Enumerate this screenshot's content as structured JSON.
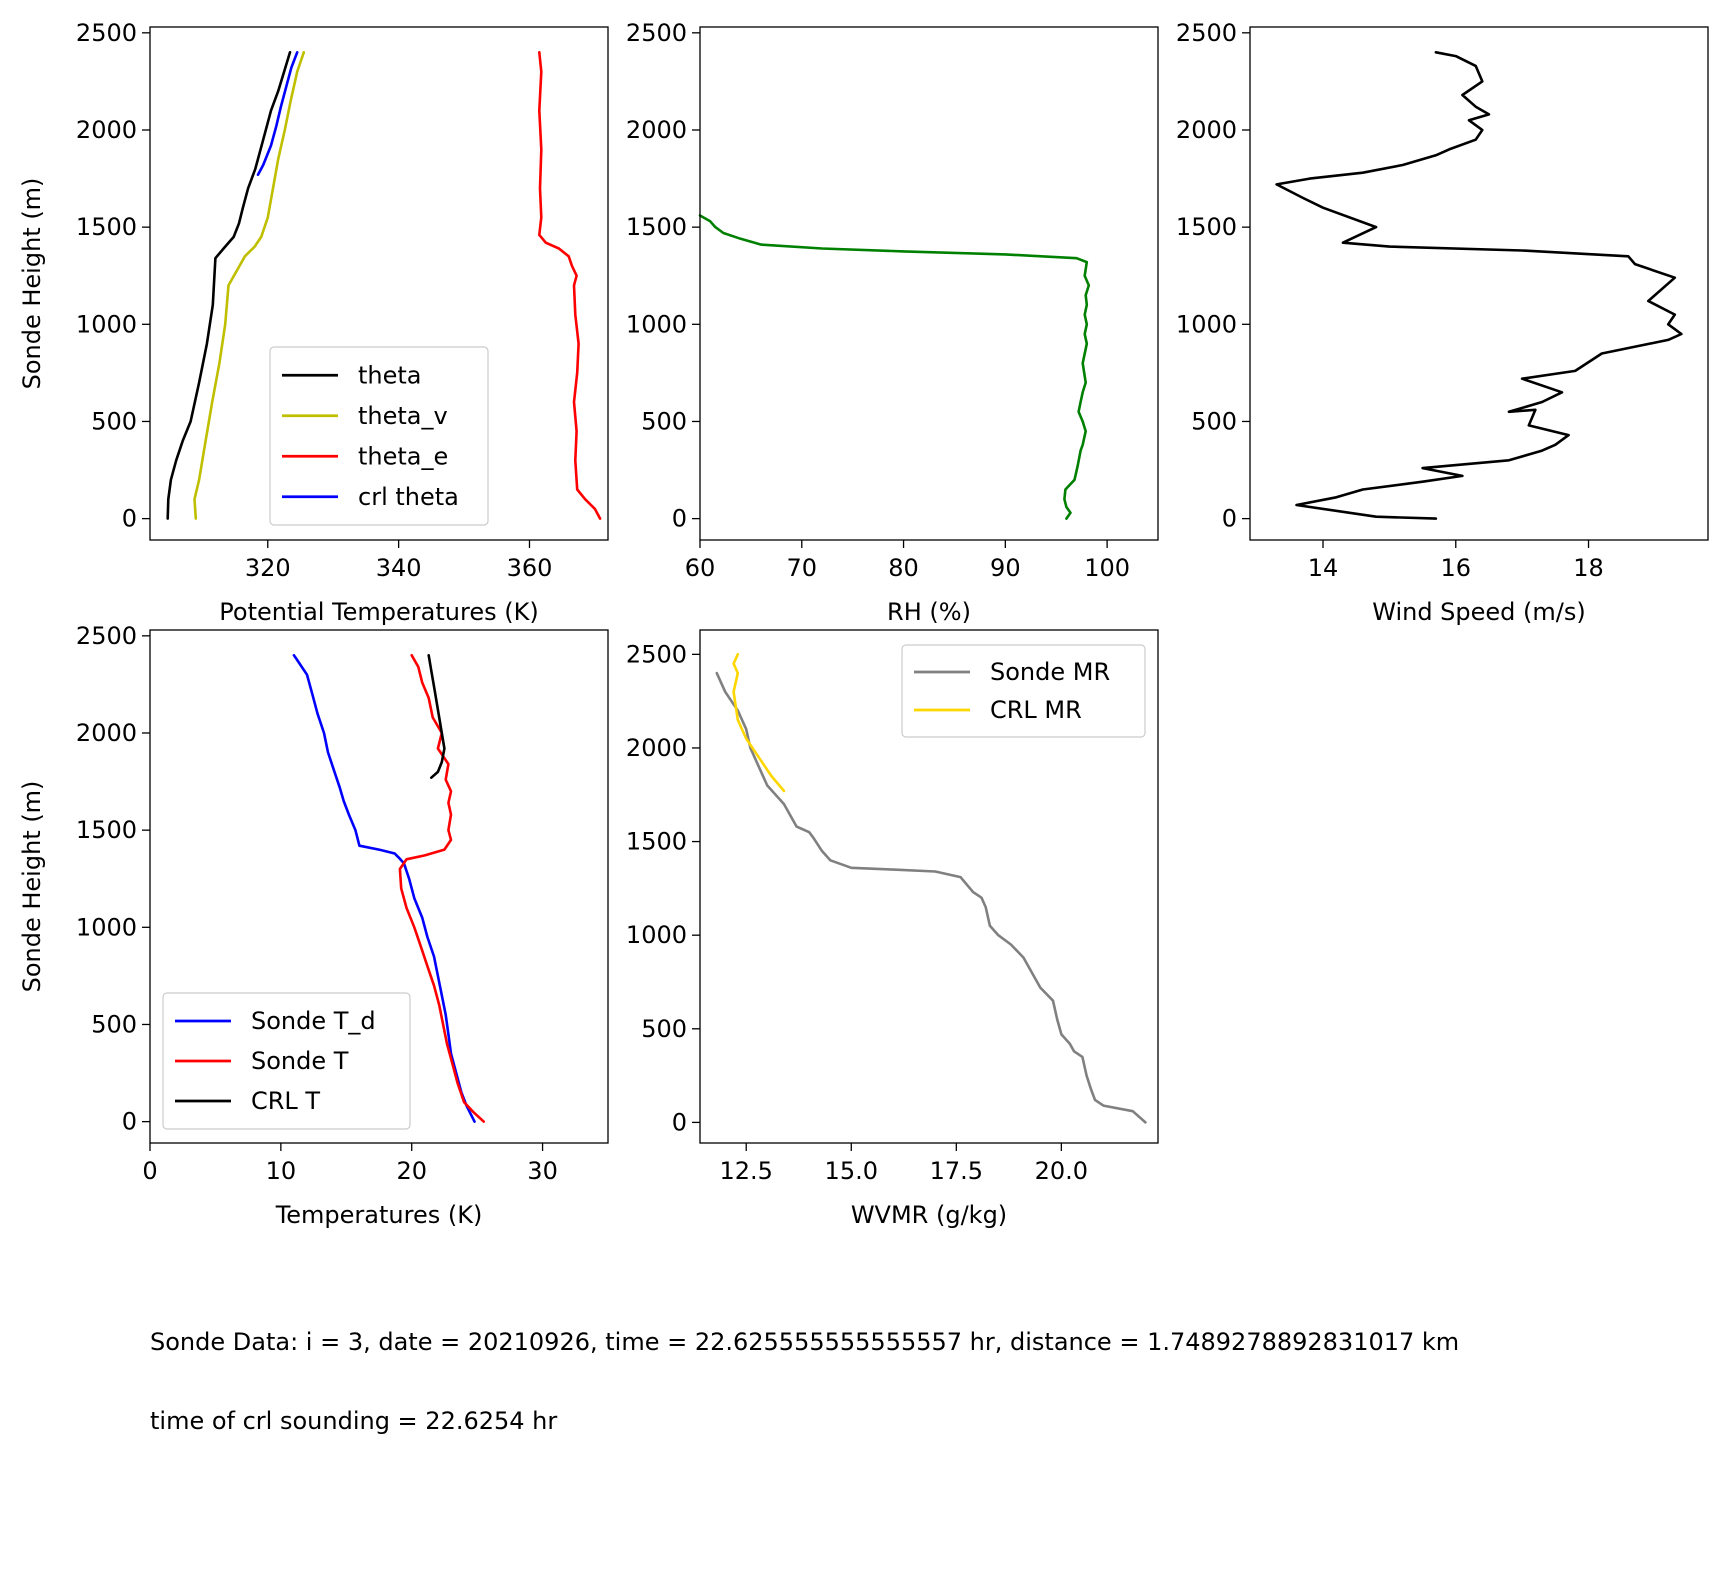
{
  "chart_data": [
    {
      "type": "line",
      "xlabel": "Potential Temperatures (K)",
      "ylabel": "Sonde Height (m)",
      "xlim": [
        302,
        372
      ],
      "ylim": [
        -110,
        2530
      ],
      "xticks": [
        320,
        340,
        360
      ],
      "yticks": [
        0,
        500,
        1000,
        1500,
        2000,
        2500
      ],
      "legend": "lower-center",
      "series": [
        {
          "name": "theta",
          "color": "#000000",
          "x": [
            304.7,
            304.8,
            305.2,
            306.0,
            307.0,
            308.2,
            309.5,
            310.7,
            311.6,
            312.0,
            313.5,
            314.8,
            315.6,
            316.2,
            317.0,
            318.1,
            319.3,
            320.5,
            321.6,
            322.5,
            323.4
          ],
          "y": [
            0,
            100,
            200,
            300,
            400,
            500,
            700,
            900,
            1100,
            1340,
            1400,
            1450,
            1520,
            1600,
            1700,
            1800,
            1950,
            2100,
            2200,
            2300,
            2400
          ]
        },
        {
          "name": "theta_v",
          "color": "#bfbf00",
          "x": [
            309.0,
            308.8,
            309.5,
            310.5,
            311.5,
            312.6,
            313.5,
            314.0,
            316.5,
            318.0,
            319.0,
            320.0,
            320.8,
            321.6,
            322.6,
            323.5,
            324.5,
            325.5
          ],
          "y": [
            0,
            100,
            200,
            400,
            600,
            800,
            1000,
            1200,
            1350,
            1400,
            1450,
            1550,
            1700,
            1850,
            2000,
            2150,
            2300,
            2400
          ]
        },
        {
          "name": "theta_e",
          "color": "#ff0000",
          "x": [
            370.8,
            370.0,
            368.5,
            367.3,
            367.0,
            367.2,
            366.8,
            367.3,
            367.5,
            367.0,
            366.8,
            367.2,
            366.5,
            366.0,
            364.5,
            362.5,
            361.5,
            361.8,
            361.6,
            361.8,
            361.5,
            361.8,
            361.5
          ],
          "y": [
            0,
            50,
            100,
            150,
            300,
            450,
            600,
            750,
            900,
            1050,
            1200,
            1250,
            1300,
            1350,
            1390,
            1420,
            1460,
            1550,
            1700,
            1900,
            2100,
            2300,
            2400
          ]
        },
        {
          "name": "crl theta",
          "color": "#0000ff",
          "x": [
            318.5,
            319.3,
            320.5,
            321.3,
            322.0,
            322.8,
            323.6,
            324.5
          ],
          "y": [
            1770,
            1820,
            1920,
            2020,
            2120,
            2220,
            2320,
            2400
          ]
        }
      ]
    },
    {
      "type": "line",
      "xlabel": "RH (%)",
      "ylabel": "",
      "xlim": [
        60,
        105
      ],
      "ylim": [
        -110,
        2530
      ],
      "xticks": [
        60,
        70,
        80,
        90,
        100
      ],
      "yticks": [
        0,
        500,
        1000,
        1500,
        2000,
        2500
      ],
      "series": [
        {
          "name": "",
          "color": "#008000",
          "x": [
            96.0,
            96.4,
            96.0,
            95.8,
            95.9,
            96.8,
            97.1,
            97.4,
            97.6,
            97.9,
            97.6,
            97.2,
            97.4,
            97.6,
            97.9,
            97.6,
            98.0,
            97.8,
            98.0,
            97.8,
            98.0,
            97.9,
            98.2,
            97.8,
            98.0,
            97.0,
            90.0,
            80.0,
            72.0,
            66.0,
            64.0,
            62.3,
            61.5,
            61.0,
            60.0
          ],
          "y": [
            0,
            30,
            60,
            100,
            150,
            200,
            270,
            350,
            380,
            450,
            500,
            550,
            600,
            650,
            700,
            800,
            900,
            950,
            1000,
            1050,
            1100,
            1150,
            1200,
            1250,
            1320,
            1340,
            1360,
            1375,
            1390,
            1410,
            1440,
            1470,
            1500,
            1530,
            1560
          ]
        }
      ]
    },
    {
      "type": "line",
      "xlabel": "Wind Speed (m/s)",
      "ylabel": "",
      "xlim": [
        12.9,
        19.8
      ],
      "ylim": [
        -110,
        2530
      ],
      "xticks": [
        14,
        16,
        18
      ],
      "yticks": [
        0,
        500,
        1000,
        1500,
        2000,
        2500
      ],
      "series": [
        {
          "name": "",
          "color": "#000000",
          "x": [
            15.7,
            14.8,
            13.6,
            14.2,
            14.6,
            15.5,
            16.1,
            15.5,
            16.8,
            17.3,
            17.5,
            17.7,
            17.1,
            17.2,
            16.8,
            17.3,
            17.6,
            17.0,
            17.8,
            18.2,
            19.2,
            19.4,
            19.2,
            19.3,
            18.9,
            19.3,
            18.7,
            18.6,
            17.0,
            15.0,
            14.3,
            14.8,
            14.0,
            13.7,
            13.3,
            13.8,
            14.6,
            15.2,
            15.7,
            15.9,
            16.3,
            16.4,
            16.2,
            16.5,
            16.3,
            16.1,
            16.4,
            16.3,
            16.0,
            15.7
          ],
          "y": [
            0,
            10,
            70,
            110,
            150,
            190,
            220,
            260,
            300,
            350,
            380,
            430,
            480,
            560,
            550,
            600,
            650,
            720,
            760,
            850,
            920,
            950,
            1000,
            1050,
            1120,
            1240,
            1310,
            1350,
            1380,
            1400,
            1420,
            1500,
            1600,
            1650,
            1720,
            1750,
            1780,
            1820,
            1870,
            1900,
            1950,
            2000,
            2050,
            2080,
            2120,
            2180,
            2250,
            2330,
            2380,
            2400
          ]
        }
      ]
    },
    {
      "type": "line",
      "xlabel": "Temperatures (K)",
      "ylabel": "Sonde Height (m)",
      "xlim": [
        0,
        35
      ],
      "ylim": [
        -110,
        2530
      ],
      "xticks": [
        0,
        10,
        20,
        30
      ],
      "yticks": [
        0,
        500,
        1000,
        1500,
        2000,
        2500
      ],
      "legend": "lower-left",
      "series": [
        {
          "name": "Sonde T_d",
          "color": "#0000ff",
          "x": [
            24.8,
            24.2,
            23.8,
            23.4,
            23.0,
            22.8,
            22.6,
            22.3,
            22.0,
            21.7,
            21.2,
            20.8,
            20.2,
            19.8,
            19.4,
            19.0,
            18.7,
            17.5,
            16.0,
            15.7,
            15.2,
            14.8,
            14.5,
            14.1,
            13.6,
            13.3,
            12.8,
            12.4,
            12.0,
            11.5,
            11.2,
            11.0
          ],
          "y": [
            0,
            80,
            150,
            250,
            350,
            450,
            550,
            650,
            750,
            850,
            950,
            1050,
            1150,
            1250,
            1330,
            1360,
            1380,
            1400,
            1420,
            1500,
            1580,
            1650,
            1720,
            1800,
            1900,
            2000,
            2100,
            2200,
            2300,
            2350,
            2380,
            2400
          ]
        },
        {
          "name": "Sonde T",
          "color": "#ff0000",
          "x": [
            25.5,
            24.7,
            24.0,
            23.5,
            23.1,
            22.7,
            22.4,
            22.1,
            21.7,
            21.2,
            20.7,
            20.2,
            19.6,
            19.2,
            19.1,
            19.6,
            21.0,
            22.5,
            23.0,
            22.8,
            23.0,
            22.8,
            23.0,
            22.6,
            22.8,
            22.0,
            22.3,
            21.6,
            21.3,
            20.8,
            20.5,
            20.0
          ],
          "y": [
            0,
            50,
            100,
            200,
            300,
            400,
            500,
            600,
            700,
            800,
            900,
            1000,
            1100,
            1200,
            1300,
            1350,
            1370,
            1400,
            1450,
            1500,
            1580,
            1640,
            1700,
            1760,
            1840,
            1920,
            2000,
            2080,
            2180,
            2260,
            2340,
            2400
          ]
        },
        {
          "name": "CRL T",
          "color": "#000000",
          "x": [
            21.5,
            22.0,
            22.3,
            22.5,
            22.3,
            22.1,
            21.9,
            21.7,
            21.5,
            21.3
          ],
          "y": [
            1770,
            1800,
            1850,
            1920,
            2000,
            2080,
            2160,
            2240,
            2320,
            2400
          ]
        }
      ]
    },
    {
      "type": "line",
      "xlabel": "WVMR (g/kg)",
      "ylabel": "",
      "xlim": [
        11.4,
        22.3
      ],
      "ylim": [
        -110,
        2630
      ],
      "xticks": [
        12.5,
        15.0,
        17.5,
        20.0
      ],
      "yticks": [
        0,
        500,
        1000,
        1500,
        2000,
        2500
      ],
      "legend": "upper-right",
      "series": [
        {
          "name": "Sonde MR",
          "color": "#808080",
          "x": [
            22.0,
            21.7,
            21.0,
            20.8,
            20.7,
            20.6,
            20.5,
            20.3,
            20.2,
            20.0,
            19.9,
            19.8,
            19.5,
            19.3,
            19.1,
            18.8,
            18.5,
            18.3,
            18.2,
            18.1,
            17.9,
            17.6,
            17.0,
            16.0,
            15.0,
            14.5,
            14.3,
            14.1,
            14.0,
            13.7,
            13.4,
            13.2,
            13.0,
            12.8,
            12.6,
            12.5,
            12.3,
            12.0,
            11.8
          ],
          "y": [
            0,
            60,
            90,
            120,
            180,
            250,
            350,
            380,
            420,
            470,
            550,
            650,
            720,
            800,
            880,
            950,
            1000,
            1050,
            1150,
            1200,
            1230,
            1310,
            1340,
            1350,
            1360,
            1400,
            1450,
            1520,
            1550,
            1580,
            1700,
            1750,
            1800,
            1900,
            2000,
            2100,
            2200,
            2300,
            2400
          ]
        },
        {
          "name": "CRL MR",
          "color": "#ffd700",
          "x": [
            13.4,
            13.1,
            12.8,
            12.5,
            12.3,
            12.2,
            12.3,
            12.2,
            12.3
          ],
          "y": [
            1770,
            1850,
            1950,
            2050,
            2150,
            2300,
            2400,
            2450,
            2500
          ]
        }
      ]
    }
  ],
  "annotations": {
    "line1": "Sonde Data: i = 3, date = 20210926, time = 22.625555555555557 hr, distance = 1.7489278892831017 km",
    "line2": "time of crl sounding = 22.6254 hr"
  }
}
